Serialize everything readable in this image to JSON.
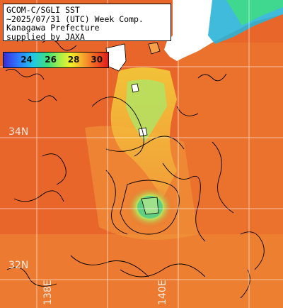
{
  "title": {
    "lines": [
      "GCOM-C/SGLI SST",
      "~2025/07/31 (UTC) Week Comp.",
      "Kanagawa Prefecture",
      "supplied by JAXA"
    ]
  },
  "colorbar": {
    "ticks": [
      "24",
      "26",
      "28",
      "30"
    ],
    "range_c": [
      22,
      31
    ]
  },
  "latitude_labels": [
    "34N",
    "32N"
  ],
  "longitude_labels": [
    "138E",
    "140E"
  ],
  "colors": {
    "land": "#ffffff",
    "sea_warm": "#e8662a",
    "grid": "#ffffff",
    "contour": "#000000"
  }
}
